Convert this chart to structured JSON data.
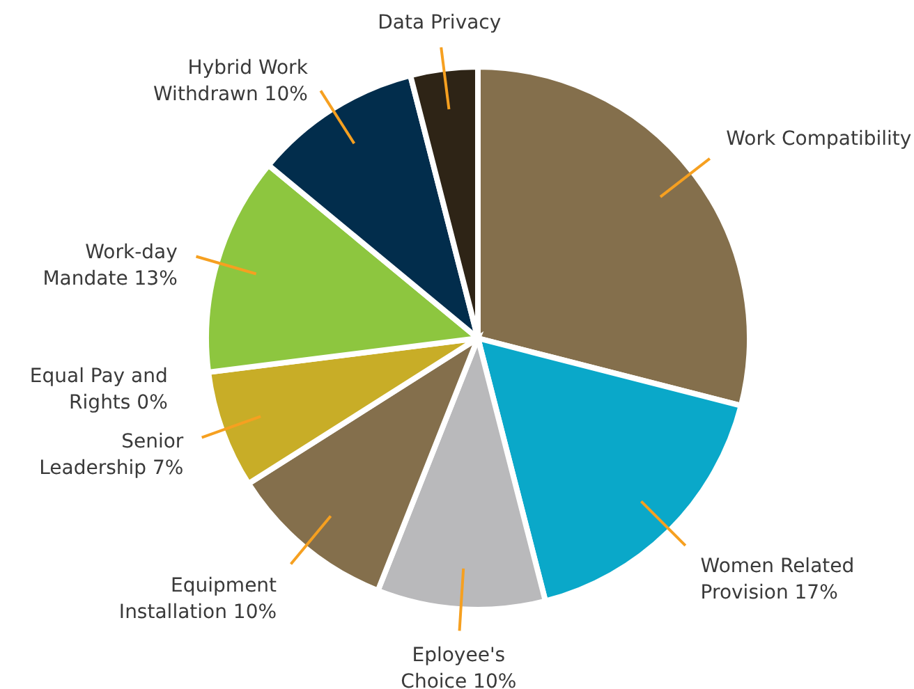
{
  "chart_data": {
    "type": "pie",
    "categories": [
      "Work Compatibility",
      "Women Related Provision",
      "Eployee's Choice",
      "Equipment Installation",
      "Senior Leadership",
      "Equal Pay and Rights",
      "Work-day Mandate",
      "Hybrid Work Withdrawn",
      "Data Privacy"
    ],
    "values": [
      29,
      17,
      10,
      10,
      7,
      0,
      13,
      10,
      4
    ],
    "value_labels": [
      null,
      "17%",
      "10%",
      "10%",
      "7%",
      "0%",
      "13%",
      "10%",
      null
    ],
    "colors": [
      "#846f4c",
      "#0aa8c9",
      "#b9b9bb",
      "#846f4c",
      "#c8ad27",
      "#8a7040",
      "#8dc63f",
      "#022d4c",
      "#2e2416"
    ]
  }
}
